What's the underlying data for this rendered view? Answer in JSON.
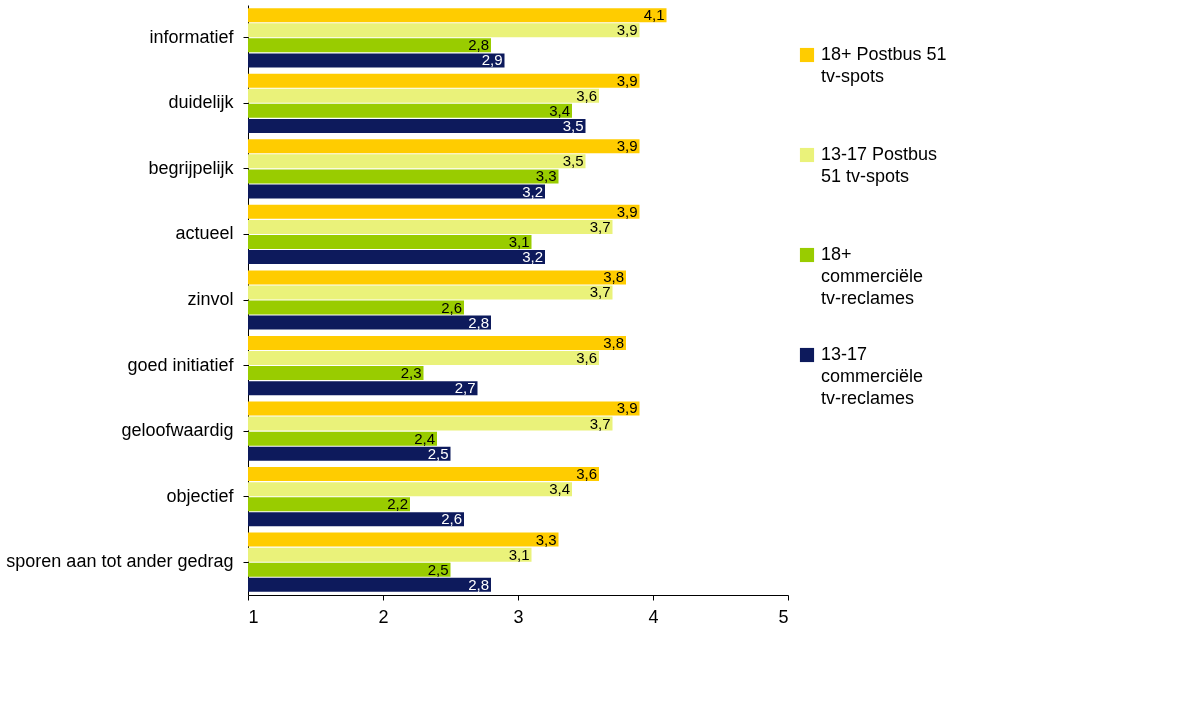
{
  "chart_data": {
    "type": "bar",
    "orientation": "horizontal",
    "grid": false,
    "legend": "right",
    "categories": [
      "informatief",
      "duidelijk",
      "begrijpelijk",
      "actueel",
      "zinvol",
      "goed initiatief",
      "geloofwaardig",
      "objectief",
      "sporen aan tot ander gedrag"
    ],
    "xlim": [
      1,
      5
    ],
    "xticks": [
      1,
      2,
      3,
      4,
      5
    ],
    "series": [
      {
        "name": "18+ Postbus 51 tv-spots",
        "color": "#ffcc00",
        "values": [
          4.1,
          3.9,
          3.9,
          3.9,
          3.8,
          3.8,
          3.9,
          3.6,
          3.3
        ],
        "value_labels": [
          "4,1",
          "3,9",
          "3,9",
          "3,9",
          "3,8",
          "3,8",
          "3,9",
          "3,6",
          "3,3"
        ]
      },
      {
        "name": "13-17 Postbus 51 tv-spots",
        "color": "#eaf27a",
        "values": [
          3.9,
          3.6,
          3.5,
          3.7,
          3.7,
          3.6,
          3.7,
          3.4,
          3.1
        ],
        "value_labels": [
          "3,9",
          "3,6",
          "3,5",
          "3,7",
          "3,7",
          "3,6",
          "3,7",
          "3,4",
          "3,1"
        ]
      },
      {
        "name": "18+ commerciële tv-reclames",
        "color": "#99cc00",
        "values": [
          2.8,
          3.4,
          3.3,
          3.1,
          2.6,
          2.3,
          2.4,
          2.2,
          2.5
        ],
        "value_labels": [
          "2,8",
          "3,4",
          "3,3",
          "3,1",
          "2,6",
          "2,3",
          "2,4",
          "2,2",
          "2,5"
        ]
      },
      {
        "name": "13-17 commerciële tv-reclames",
        "color": "#0d1a5c",
        "values": [
          2.9,
          3.5,
          3.2,
          3.2,
          2.8,
          2.7,
          2.5,
          2.6,
          2.8
        ],
        "value_labels": [
          "2,9",
          "3,5",
          "3,2",
          "3,2",
          "2,8",
          "2,7",
          "2,5",
          "2,6",
          "2,8"
        ]
      }
    ]
  }
}
